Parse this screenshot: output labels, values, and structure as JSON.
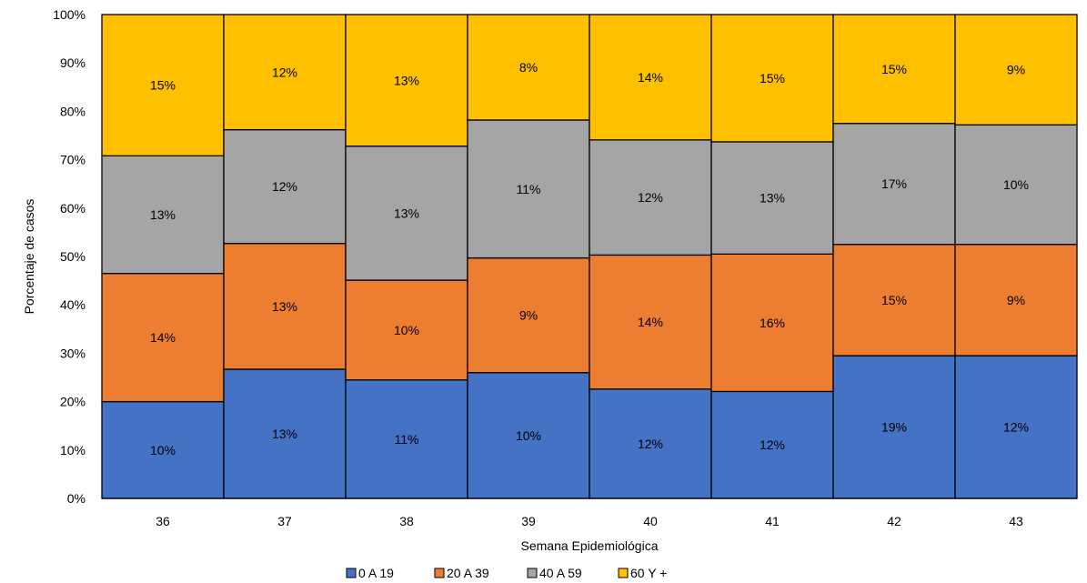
{
  "chart_data": {
    "type": "bar",
    "stacked": true,
    "normalized": true,
    "xlabel": "Semana Epidemiológica",
    "ylabel": "Porcentaje de casos",
    "ylim": [
      0,
      100
    ],
    "y_ticks": [
      "0%",
      "10%",
      "20%",
      "30%",
      "40%",
      "50%",
      "60%",
      "70%",
      "80%",
      "90%",
      "100%"
    ],
    "categories": [
      "36",
      "37",
      "38",
      "39",
      "40",
      "41",
      "42",
      "43"
    ],
    "legend_position": "bottom",
    "series": [
      {
        "name": "0 A 19",
        "color": "#4472C4",
        "values": [
          20,
          26.7,
          24.5,
          26,
          22.6,
          22.1,
          29.5,
          29.5
        ],
        "labels": [
          "10%",
          "13%",
          "11%",
          "10%",
          "12%",
          "12%",
          "19%",
          "12%"
        ]
      },
      {
        "name": "20 A 39",
        "color": "#ED7D31",
        "values": [
          26.5,
          26,
          20.6,
          23.7,
          27.7,
          28.4,
          23,
          23
        ],
        "labels": [
          "14%",
          "13%",
          "10%",
          "9%",
          "14%",
          "16%",
          "15%",
          "9%"
        ]
      },
      {
        "name": "40 A 59",
        "color": "#A5A5A5",
        "values": [
          24.3,
          23.5,
          27.7,
          28.5,
          23.8,
          23.2,
          25,
          24.7
        ],
        "labels": [
          "13%",
          "12%",
          "13%",
          "11%",
          "12%",
          "13%",
          "17%",
          "10%"
        ]
      },
      {
        "name": "60 Y +",
        "color": "#FFC000",
        "values": [
          29.2,
          23.8,
          27.2,
          21.8,
          25.9,
          26.3,
          22.5,
          22.8
        ],
        "labels": [
          "15%",
          "12%",
          "13%",
          "8%",
          "14%",
          "15%",
          "15%",
          "9%"
        ]
      }
    ]
  }
}
